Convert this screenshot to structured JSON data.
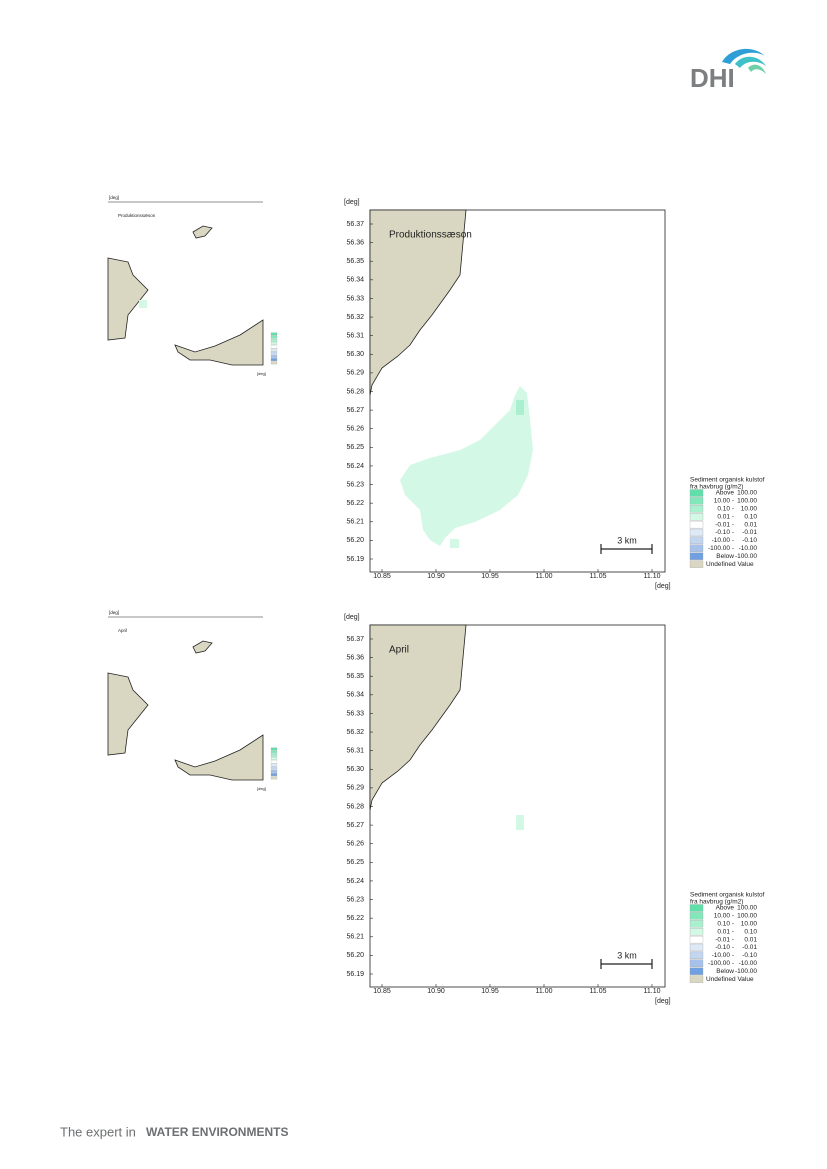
{
  "logo": "DHI",
  "panels": [
    {
      "title": "Produktionssæson",
      "axis_unit": "[deg]",
      "yticks": [
        "56.37",
        "56.36",
        "56.35",
        "56.34",
        "56.33",
        "56.32",
        "56.31",
        "56.30",
        "56.29",
        "56.28",
        "56.27",
        "56.26",
        "56.25",
        "56.24",
        "56.23",
        "56.22",
        "56.21",
        "56.20",
        "56.19"
      ],
      "xticks": [
        "10.85",
        "10.90",
        "10.95",
        "11.00",
        "11.05",
        "11.10"
      ],
      "scale_label": "3 km",
      "legend": {
        "title_lines": [
          "Sediment organisk kulstof",
          "fra havbrug (g/m2)"
        ],
        "rows": [
          {
            "from": "Above",
            "to": "100.00",
            "color": "#5fe0aa"
          },
          {
            "from": "10.00 -",
            "to": "100.00",
            "color": "#82e8bc"
          },
          {
            "from": "0.10 -",
            "to": "10.00",
            "color": "#aaf0d0"
          },
          {
            "from": "0.01 -",
            "to": "0.10",
            "color": "#d4f8e6"
          },
          {
            "from": "-0.01 -",
            "to": "0.01",
            "color": "#ffffff"
          },
          {
            "from": "-0.10 -",
            "to": "-0.01",
            "color": "#dfe9f5"
          },
          {
            "from": "-10.00 -",
            "to": "-0.10",
            "color": "#c2d6ef"
          },
          {
            "from": "-100.00 -",
            "to": "-10.00",
            "color": "#a6c2ea"
          },
          {
            "from": "Below",
            "to": "-100.00",
            "color": "#70a0e2"
          },
          {
            "from": "Undefined Value",
            "color": "#d9d7c1"
          }
        ]
      }
    },
    {
      "title": "April",
      "axis_unit": "[deg]",
      "yticks": [
        "56.37",
        "56.36",
        "56.35",
        "56.34",
        "56.33",
        "56.32",
        "56.31",
        "56.30",
        "56.29",
        "56.28",
        "56.27",
        "56.26",
        "56.25",
        "56.24",
        "56.23",
        "56.22",
        "56.21",
        "56.20",
        "56.19"
      ],
      "xticks": [
        "10.85",
        "10.90",
        "10.95",
        "11.00",
        "11.05",
        "11.10"
      ],
      "scale_label": "3 km",
      "legend": {
        "title_lines": [
          "Sediment organisk kulstof",
          "fra havbrug (g/m2)"
        ],
        "rows": [
          {
            "from": "Above",
            "to": "100.00",
            "color": "#5fe0aa"
          },
          {
            "from": "10.00 -",
            "to": "100.00",
            "color": "#82e8bc"
          },
          {
            "from": "0.10 -",
            "to": "10.00",
            "color": "#aaf0d0"
          },
          {
            "from": "0.01 -",
            "to": "0.10",
            "color": "#d4f8e6"
          },
          {
            "from": "-0.01 -",
            "to": "0.01",
            "color": "#ffffff"
          },
          {
            "from": "-0.10 -",
            "to": "-0.01",
            "color": "#dfe9f5"
          },
          {
            "from": "-10.00 -",
            "to": "-0.10",
            "color": "#c2d6ef"
          },
          {
            "from": "-100.00 -",
            "to": "-10.00",
            "color": "#a6c2ea"
          },
          {
            "from": "Below",
            "to": "-100.00",
            "color": "#70a0e2"
          },
          {
            "from": "Undefined Value",
            "color": "#d9d7c1"
          }
        ]
      }
    }
  ],
  "footer": {
    "prefix": "The expert in",
    "emphasis": "WATER ENVIRONMENTS"
  }
}
